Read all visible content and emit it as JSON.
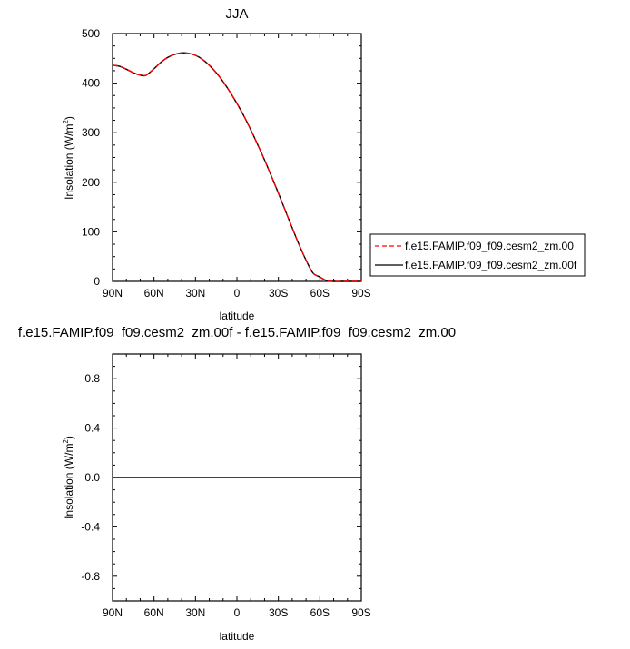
{
  "chart_data": [
    {
      "type": "line",
      "title": "JJA",
      "xlabel": "latitude",
      "ylabel": "Insolation (W/m²)",
      "ylabel_main": "Insolation (W/m",
      "ylabel_sup": "2",
      "ylabel_close": ")",
      "x_ticks": [
        90,
        60,
        30,
        0,
        -30,
        -60,
        -90
      ],
      "x_tick_labels": [
        "90N",
        "60N",
        "30N",
        "0",
        "30S",
        "60S",
        "90S"
      ],
      "xlim": [
        90,
        -90
      ],
      "ylim": [
        0,
        500
      ],
      "y_ticks": [
        0,
        100,
        200,
        300,
        400,
        500
      ],
      "y_tick_labels": [
        "0",
        "100",
        "200",
        "300",
        "400",
        "500"
      ],
      "legend_position": "right",
      "series": [
        {
          "name": "f.e15.FAMIP.f09_f09.cesm2_zm.00",
          "color": "#ff0000",
          "dash": "dashed",
          "x": [
            90,
            85,
            80,
            75,
            70,
            67,
            65,
            60,
            55,
            50,
            45,
            40,
            35,
            30,
            25,
            20,
            15,
            10,
            5,
            0,
            -5,
            -10,
            -15,
            -20,
            -25,
            -30,
            -35,
            -40,
            -45,
            -50,
            -55,
            -60,
            -63,
            -66,
            -70,
            -75,
            -80,
            -85,
            -90
          ],
          "y": [
            436,
            434,
            428,
            421,
            416,
            415,
            417,
            429,
            442,
            452,
            458,
            461,
            460,
            456,
            448,
            436,
            421,
            403,
            382,
            359,
            334,
            306,
            276,
            245,
            212,
            178,
            143,
            108,
            74,
            43,
            17,
            9,
            4,
            1,
            0,
            0,
            0,
            0,
            0
          ]
        },
        {
          "name": "f.e15.FAMIP.f09_f09.cesm2_zm.00f",
          "color": "#000000",
          "dash": "solid",
          "x": [
            90,
            85,
            80,
            75,
            70,
            67,
            65,
            60,
            55,
            50,
            45,
            40,
            35,
            30,
            25,
            20,
            15,
            10,
            5,
            0,
            -5,
            -10,
            -15,
            -20,
            -25,
            -30,
            -35,
            -40,
            -45,
            -50,
            -55,
            -60,
            -63,
            -66,
            -70,
            -75,
            -80,
            -85,
            -90
          ],
          "y": [
            436,
            434,
            428,
            421,
            416,
            415,
            417,
            429,
            442,
            452,
            458,
            461,
            460,
            456,
            448,
            436,
            421,
            403,
            382,
            359,
            334,
            306,
            276,
            245,
            212,
            178,
            143,
            108,
            74,
            43,
            17,
            9,
            4,
            1,
            0,
            0,
            0,
            0,
            0
          ]
        }
      ]
    },
    {
      "type": "line",
      "title": "f.e15.FAMIP.f09_f09.cesm2_zm.00f - f.e15.FAMIP.f09_f09.cesm2_zm.00",
      "xlabel": "latitude",
      "ylabel": "Insolation (W/m²)",
      "ylabel_main": "Insolation (W/m",
      "ylabel_sup": "2",
      "ylabel_close": ")",
      "x_ticks": [
        90,
        60,
        30,
        0,
        -30,
        -60,
        -90
      ],
      "x_tick_labels": [
        "90N",
        "60N",
        "30N",
        "0",
        "30S",
        "60S",
        "90S"
      ],
      "xlim": [
        90,
        -90
      ],
      "ylim": [
        -1,
        1
      ],
      "y_ticks": [
        -0.8,
        -0.4,
        0.0,
        0.4,
        0.8
      ],
      "y_tick_labels": [
        "-0.8",
        "-0.4",
        "0.0",
        "0.4",
        "0.8"
      ],
      "series": [
        {
          "color": "#000000",
          "dash": "solid",
          "x": [
            90,
            -90
          ],
          "y": [
            0,
            0
          ]
        }
      ]
    }
  ]
}
